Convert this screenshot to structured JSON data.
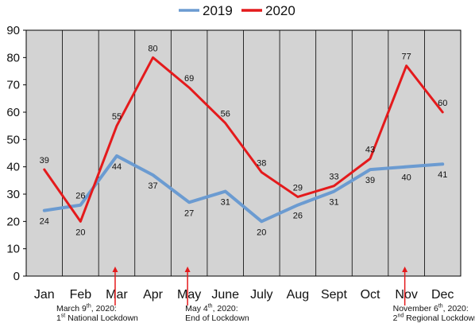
{
  "chart_data": {
    "type": "line",
    "categories": [
      "Jan",
      "Feb",
      "Mar",
      "Apr",
      "May",
      "June",
      "July",
      "Aug",
      "Sept",
      "Oct",
      "Nov",
      "Dec"
    ],
    "ylim": [
      0,
      90
    ],
    "yticks": [
      "0",
      "10",
      "20",
      "30",
      "40",
      "50",
      "60",
      "70",
      "80",
      "90"
    ],
    "grid": "vertical",
    "legend_position": "top-center",
    "series": [
      {
        "name": "2019",
        "color": "#6b9bd1",
        "values": [
          24,
          26,
          44,
          37,
          27,
          31,
          20,
          26,
          31,
          39,
          40,
          41
        ],
        "labels": [
          "24",
          "26",
          "44",
          "37",
          "27",
          "31",
          "20",
          "26",
          "31",
          "39",
          "40",
          "41"
        ]
      },
      {
        "name": "2020",
        "color": "#e41a1c",
        "values": [
          39,
          20,
          55,
          80,
          69,
          56,
          38,
          29,
          33,
          43,
          77,
          60
        ],
        "labels": [
          "39",
          "20",
          "55",
          "80",
          "69",
          "56",
          "38",
          "29",
          "33",
          "43",
          "77",
          "60"
        ]
      }
    ],
    "annotations": [
      {
        "month": "Mar",
        "pre": "March 9",
        "sup": "th",
        "post": ", 2020:",
        "line2pre": "1",
        "line2sup": "st",
        "line2post": " National Lockdown"
      },
      {
        "month": "May",
        "pre": "May 4",
        "sup": "th",
        "post": ", 2020:",
        "line2pre": "End of Lockdown",
        "line2sup": "",
        "line2post": ""
      },
      {
        "month": "Nov",
        "pre": "November 6",
        "sup": "th",
        "post": ", 2020:",
        "line2pre": "2",
        "line2sup": "nd",
        "line2post": " Regional Lockdown"
      }
    ]
  }
}
